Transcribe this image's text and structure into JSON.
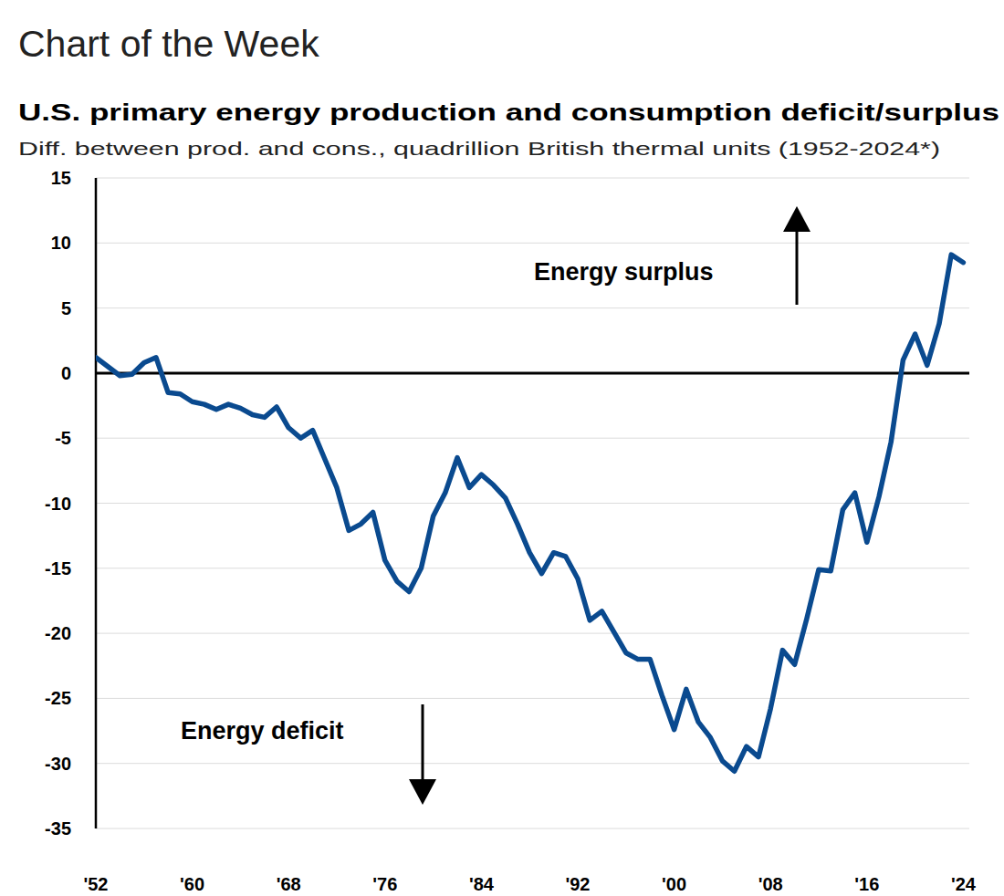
{
  "chart_data": {
    "type": "line",
    "header": "Chart of the Week",
    "title": "U.S. primary energy production and consumption deficit/surplus",
    "subtitle": "Diff. between prod. and cons., quadrillion British thermal units (1952-2024*)",
    "annotations": [
      "Energy surplus",
      "Energy deficit"
    ],
    "x": [
      1952,
      1953,
      1954,
      1955,
      1956,
      1957,
      1958,
      1959,
      1960,
      1961,
      1962,
      1963,
      1964,
      1965,
      1966,
      1967,
      1968,
      1969,
      1970,
      1971,
      1972,
      1973,
      1974,
      1975,
      1976,
      1977,
      1978,
      1979,
      1980,
      1981,
      1982,
      1983,
      1984,
      1985,
      1986,
      1987,
      1988,
      1989,
      1990,
      1991,
      1992,
      1993,
      1994,
      1995,
      1996,
      1997,
      1998,
      1999,
      2000,
      2001,
      2002,
      2003,
      2004,
      2005,
      2006,
      2007,
      2008,
      2009,
      2010,
      2011,
      2012,
      2013,
      2014,
      2015,
      2016,
      2017,
      2018,
      2019,
      2020,
      2021,
      2022,
      2023,
      2024
    ],
    "values": [
      1.2,
      0.5,
      -0.2,
      -0.1,
      0.8,
      1.2,
      -1.5,
      -1.6,
      -2.2,
      -2.4,
      -2.8,
      -2.4,
      -2.7,
      -3.2,
      -3.4,
      -2.6,
      -4.2,
      -5.0,
      -4.4,
      -6.6,
      -8.8,
      -12.1,
      -11.6,
      -10.7,
      -14.4,
      -16.0,
      -16.8,
      -15.0,
      -11.0,
      -9.2,
      -6.5,
      -8.8,
      -7.8,
      -8.6,
      -9.6,
      -11.6,
      -13.8,
      -15.4,
      -13.8,
      -14.1,
      -15.8,
      -19.0,
      -18.3,
      -19.9,
      -21.5,
      -22.0,
      -22.0,
      -24.8,
      -27.4,
      -24.3,
      -26.8,
      -28.0,
      -29.8,
      -30.6,
      -28.7,
      -29.5,
      -25.8,
      -21.3,
      -22.4,
      -18.9,
      -15.1,
      -15.2,
      -10.5,
      -9.2,
      -13.0,
      -9.5,
      -5.3,
      1.0,
      3.0,
      0.6,
      3.8,
      9.1,
      8.5
    ],
    "color": "#0a4a8f",
    "xlim": [
      1952,
      2024.5
    ],
    "xticks": [
      {
        "value": 1952,
        "label": "'52"
      },
      {
        "value": 1960,
        "label": "'60"
      },
      {
        "value": 1968,
        "label": "'68"
      },
      {
        "value": 1976,
        "label": "'76"
      },
      {
        "value": 1984,
        "label": "'84"
      },
      {
        "value": 1992,
        "label": "'92"
      },
      {
        "value": 2000,
        "label": "'00"
      },
      {
        "value": 2008,
        "label": "'08"
      },
      {
        "value": 2016,
        "label": "'16"
      },
      {
        "value": 2024,
        "label": "'24"
      }
    ],
    "ylim": [
      -35,
      15
    ],
    "yticks": [
      -35,
      -30,
      -25,
      -20,
      -15,
      -10,
      -5,
      0,
      5,
      10,
      15
    ],
    "grid": true
  }
}
